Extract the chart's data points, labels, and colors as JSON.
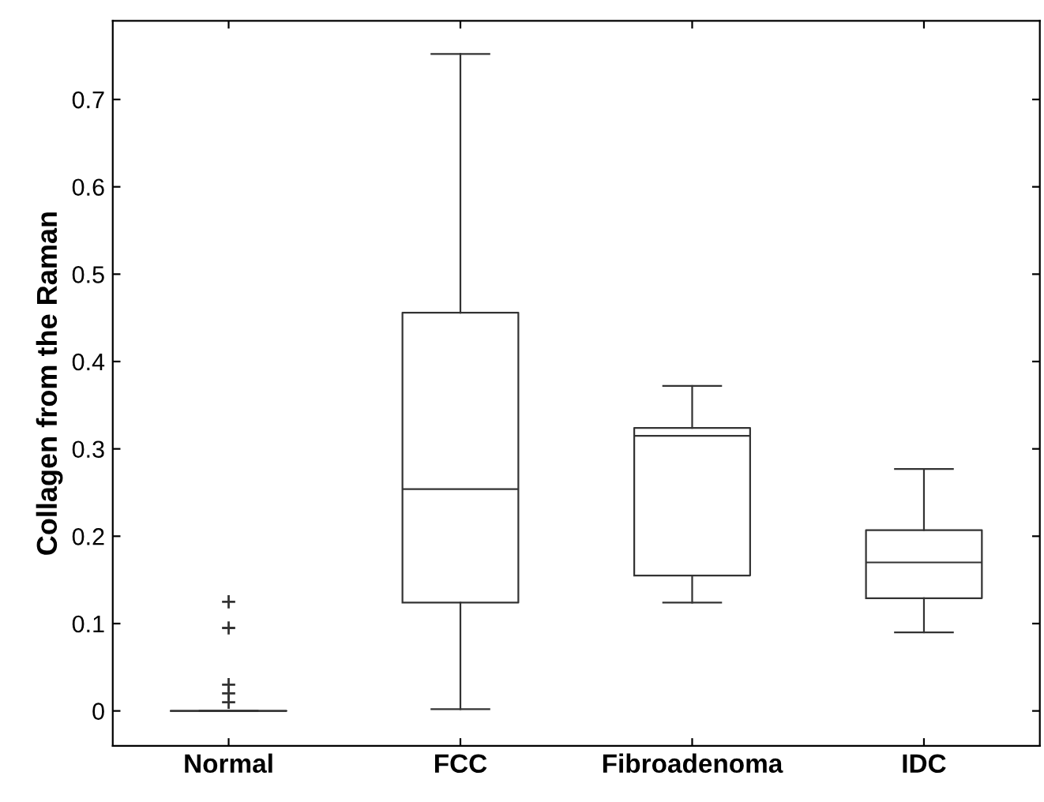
{
  "chart_data": {
    "type": "box",
    "ylabel": "Collagen from the Raman",
    "categories": [
      "Normal",
      "FCC",
      "Fibroadenoma",
      "IDC"
    ],
    "boxes": [
      {
        "low": 0,
        "q1": 0,
        "median": 0,
        "q3": 0,
        "high": 0,
        "outliers": [
          0.125,
          0.095,
          0.03,
          0.02,
          0.01
        ]
      },
      {
        "low": 0.002,
        "q1": 0.124,
        "median": 0.254,
        "q3": 0.456,
        "high": 0.752
      },
      {
        "low": 0.124,
        "q1": 0.155,
        "median": 0.315,
        "q3": 0.324,
        "high": 0.372
      },
      {
        "low": 0.09,
        "q1": 0.129,
        "median": 0.17,
        "q3": 0.207,
        "high": 0.277
      }
    ],
    "color": "#333333",
    "ylim": [
      -0.04,
      0.79
    ],
    "yticks": [
      0,
      0.1,
      0.2,
      0.3,
      0.4,
      0.5,
      0.6,
      0.7
    ],
    "grid": false,
    "marker": "cross"
  }
}
